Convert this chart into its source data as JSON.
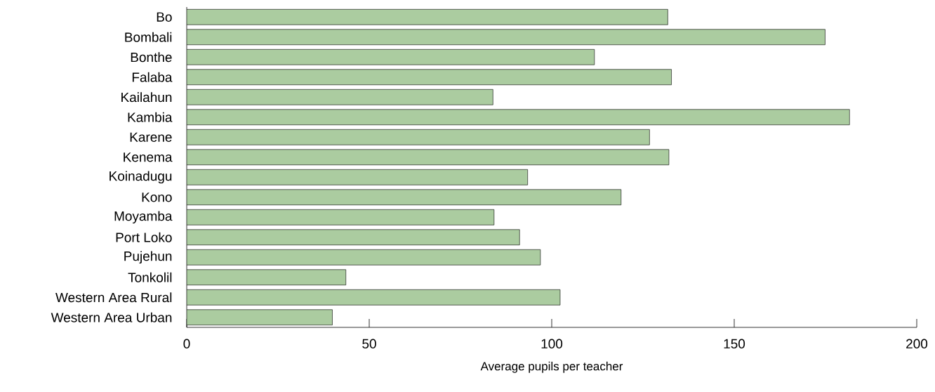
{
  "chart_data": {
    "type": "bar",
    "orientation": "horizontal",
    "xlabel": "Average pupils per teacher",
    "categories": [
      "Bo",
      "Bombali",
      "Bonthe",
      "Falaba",
      "Kailahun",
      "Kambia",
      "Karene",
      "Kenema",
      "Koinadugu",
      "Kono",
      "Moyamba",
      "Port Loko",
      "Pujehun",
      "Tonkolil",
      "Western Area Rural",
      "Western Area Urban"
    ],
    "values": [
      131.8,
      174.9,
      111.7,
      132.8,
      83.9,
      181.6,
      126.8,
      132.1,
      93.4,
      119.0,
      84.2,
      91.2,
      96.9,
      43.6,
      102.3,
      39.9
    ],
    "color": "#abcca0",
    "xlim": [
      0,
      200
    ],
    "xticks": [
      0,
      50,
      100,
      150,
      200
    ]
  }
}
